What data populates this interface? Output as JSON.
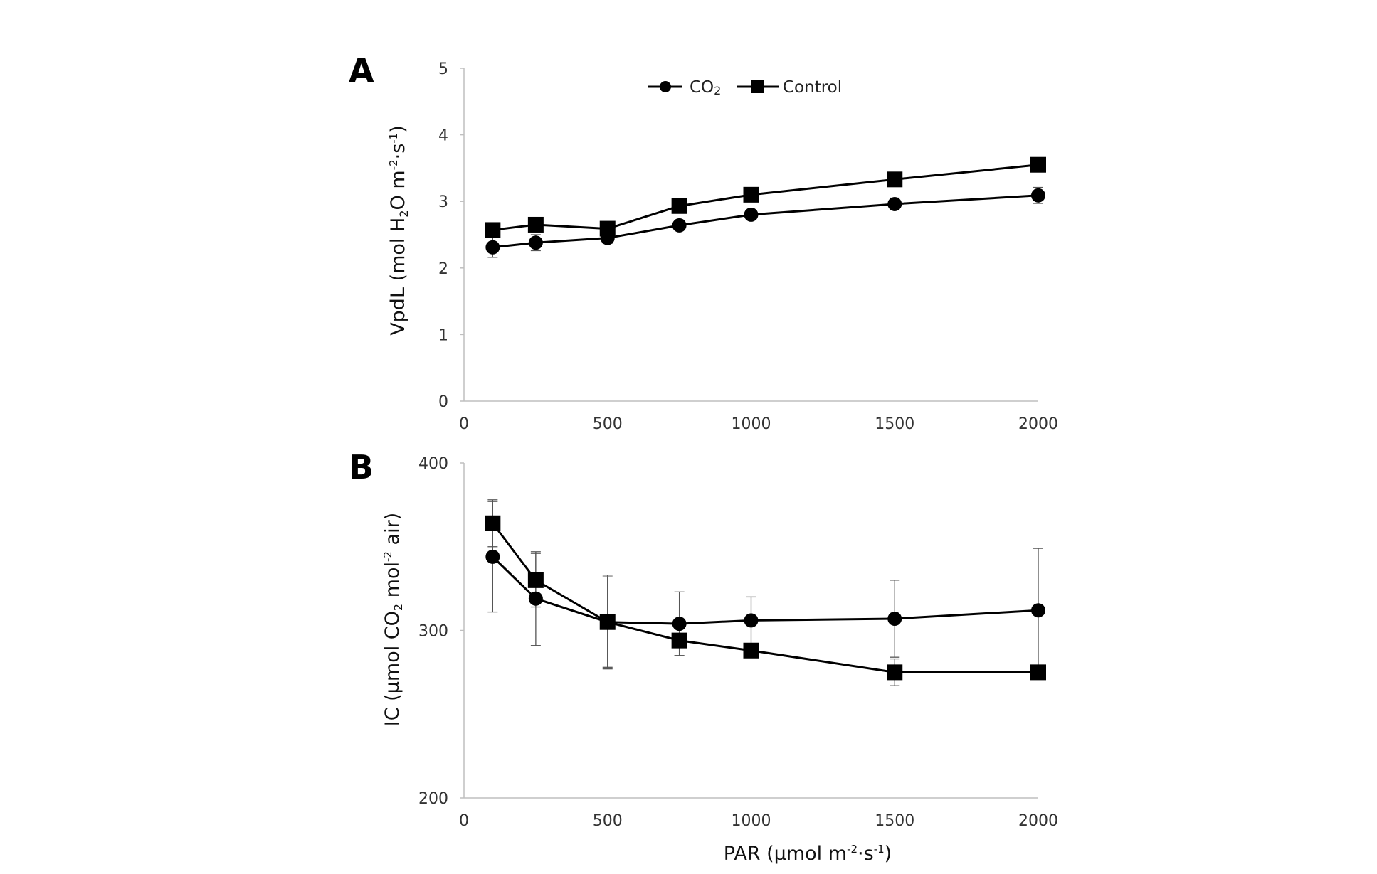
{
  "colors": {
    "series": "#000000",
    "axis": "#bfbfbf",
    "errorbar": "#555555",
    "background": "#ffffff"
  },
  "chart_data": [
    {
      "id": "A",
      "type": "line",
      "panel_label": "A",
      "ylabel": {
        "main": "VpdL (mol H",
        "sub": "2",
        "mid": "O m",
        "sup1": "-2",
        "dot": "·s",
        "sup2": "-1",
        "end": ")"
      },
      "ylim": [
        0,
        5
      ],
      "yticks": [
        0,
        1,
        2,
        3,
        4,
        5
      ],
      "xlim": [
        0,
        2000
      ],
      "xticks": [
        0,
        500,
        1000,
        1500,
        2000
      ],
      "x": [
        100,
        250,
        500,
        750,
        1000,
        1500,
        2000
      ],
      "series": [
        {
          "name": "CO2",
          "marker": "circle",
          "values": [
            2.31,
            2.38,
            2.45,
            2.64,
            2.8,
            2.96,
            3.09
          ],
          "errors": [
            0.15,
            0.12,
            0.08,
            0.05,
            0.05,
            0.09,
            0.12
          ]
        },
        {
          "name": "Control",
          "marker": "square",
          "values": [
            2.57,
            2.65,
            2.59,
            2.93,
            3.1,
            3.33,
            3.55
          ],
          "errors": [
            0.05,
            0.05,
            0.05,
            0.05,
            0.05,
            0.05,
            0.05
          ]
        }
      ],
      "legend": {
        "position": "top-center",
        "items": [
          {
            "label": "CO",
            "sub": "2",
            "marker": "circle"
          },
          {
            "label": "Control",
            "sub": "",
            "marker": "square"
          }
        ]
      }
    },
    {
      "id": "B",
      "type": "line",
      "panel_label": "B",
      "ylabel": {
        "main": "IC (μmol CO",
        "sub": "2",
        "mid": " mol",
        "sup1": "-2",
        "end": " air)"
      },
      "xlabel": {
        "main": "PAR (μmol m",
        "sup1": "-2",
        "dot": "·s",
        "sup2": "-1",
        "end": ")"
      },
      "ylim": [
        200,
        400
      ],
      "yticks": [
        200,
        300,
        400
      ],
      "xlim": [
        0,
        2000
      ],
      "xticks": [
        0,
        500,
        1000,
        1500,
        2000
      ],
      "x": [
        100,
        250,
        500,
        750,
        1000,
        1500,
        2000
      ],
      "series": [
        {
          "name": "CO2",
          "marker": "circle",
          "values": [
            344,
            319,
            305,
            304,
            306,
            307,
            312
          ],
          "errors": [
            33,
            28,
            27,
            19,
            14,
            23,
            37
          ]
        },
        {
          "name": "Control",
          "marker": "square",
          "values": [
            364,
            330,
            305,
            294,
            288,
            275,
            275
          ],
          "errors": [
            14,
            16,
            28,
            9,
            3,
            8,
            3
          ]
        }
      ]
    }
  ]
}
